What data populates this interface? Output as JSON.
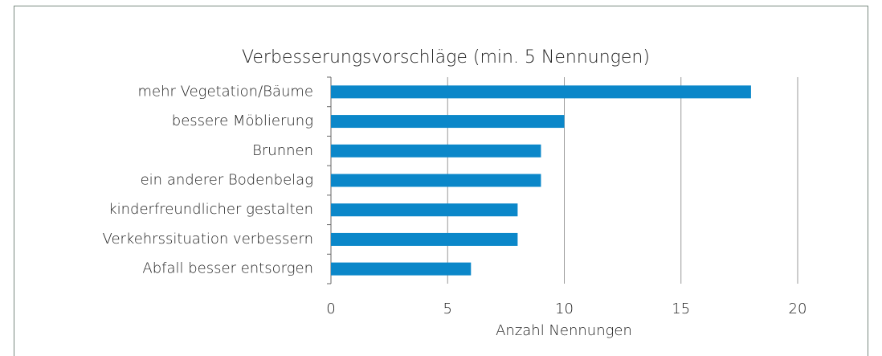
{
  "chart_data": {
    "type": "bar",
    "orientation": "horizontal",
    "title": "Verbesserungsvorschläge (min. 5 Nennungen)",
    "categories": [
      "mehr Vegetation/Bäume",
      "bessere Möblierung",
      "Brunnen",
      "ein anderer Bodenbelag",
      "kinderfreundlicher gestalten",
      "Verkehrssituation verbessern",
      "Abfall besser entsorgen"
    ],
    "values": [
      18,
      10,
      9,
      9,
      8,
      8,
      6
    ],
    "color": "#0b87c9",
    "x_label": "Anzahl Nennungen",
    "xlim": [
      0,
      20
    ],
    "xticks": [
      0,
      5,
      10,
      15,
      20
    ],
    "grid": true
  }
}
